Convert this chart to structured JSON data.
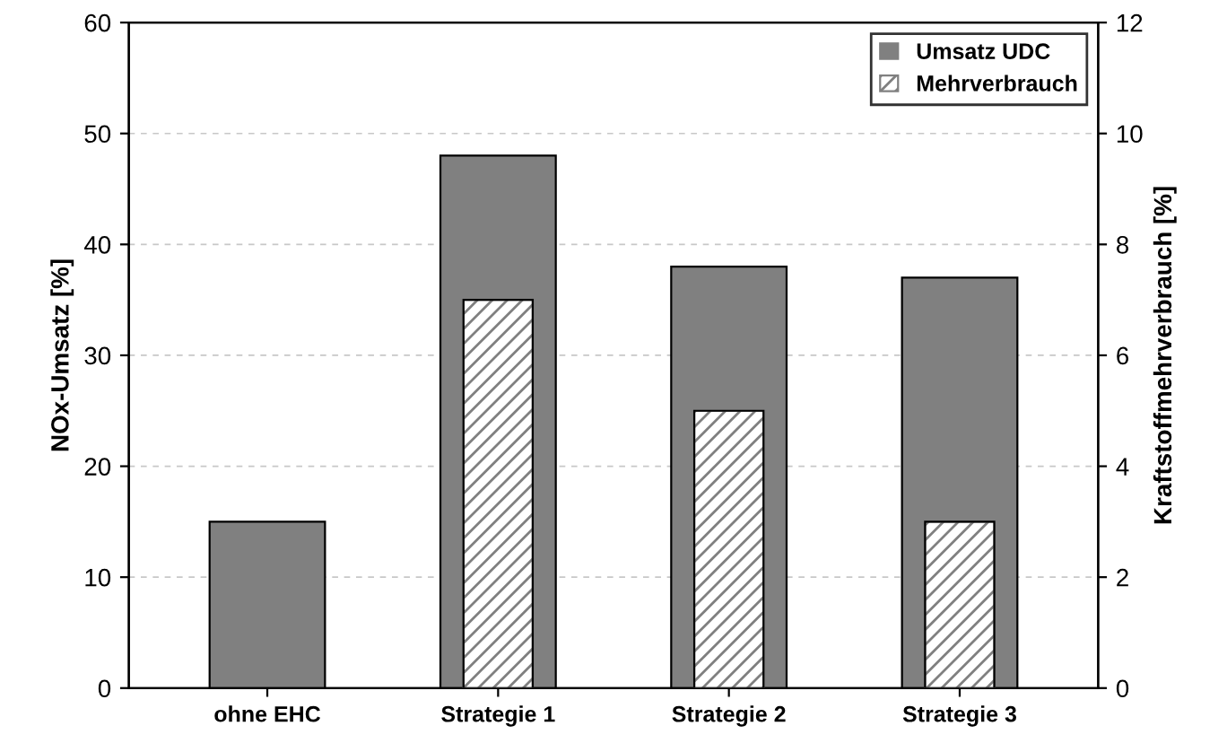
{
  "chart_data": {
    "type": "bar",
    "categories": [
      "ohne EHC",
      "Strategie 1",
      "Strategie 2",
      "Strategie 3"
    ],
    "series": [
      {
        "name": "Umsatz UDC",
        "color": "#808080",
        "values": [
          15,
          48,
          38,
          37
        ]
      },
      {
        "name": "Mehrverbrauch",
        "color": "#808080",
        "axis": "y2",
        "values": [
          null,
          7,
          5,
          3
        ]
      }
    ],
    "ylabel": "NOx-Umsatz [%]",
    "y2label": "Kraftstoffmehrverbrauch [%]",
    "ylim": [
      0,
      60
    ],
    "yticks": [
      0,
      10,
      20,
      30,
      40,
      50,
      60
    ],
    "y2lim": [
      0,
      12
    ],
    "y2ticks": [
      0,
      2,
      4,
      6,
      8,
      10,
      12
    ],
    "grid": "y",
    "legend": "top right"
  }
}
